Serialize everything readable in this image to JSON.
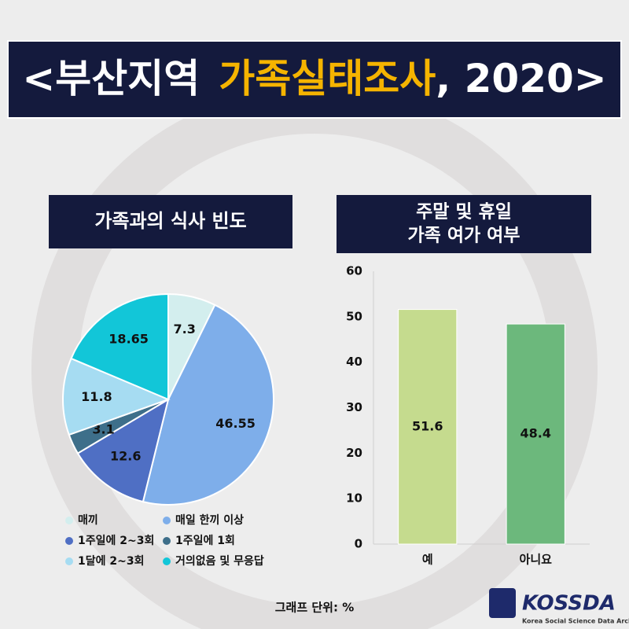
{
  "header": {
    "title_prefix": "<부산지역",
    "title_highlight": "가족실태조사",
    "title_suffix": ", 2020>"
  },
  "chart_data": [
    {
      "type": "pie",
      "title": "가족과의 식사 빈도",
      "categories": [
        "매끼",
        "매일 한끼 이상",
        "1주일에 2~3회",
        "1주일에 1회",
        "1달에 2~3회",
        "거의없음 및 무응답"
      ],
      "values": [
        7.3,
        46.55,
        12.6,
        3.1,
        11.8,
        18.65
      ],
      "colors": [
        "#d3eeee",
        "#7eaeea",
        "#4f6fc4",
        "#3e6f8a",
        "#a6dcf2",
        "#12c6d8"
      ]
    },
    {
      "type": "bar",
      "title": [
        "주말 및 휴일",
        "가족 여가 여부"
      ],
      "categories": [
        "예",
        "아니요"
      ],
      "values": [
        51.6,
        48.4
      ],
      "colors": [
        "#c5db8e",
        "#6cb87c"
      ],
      "ylim": [
        0,
        60
      ],
      "yticks": [
        0,
        10,
        20,
        30,
        40,
        50,
        60
      ],
      "grid": false
    }
  ],
  "footnote": "그래프 단위: %",
  "logo": {
    "name": "KOSSDA",
    "subtitle": "Korea Social Science Data Archive"
  }
}
